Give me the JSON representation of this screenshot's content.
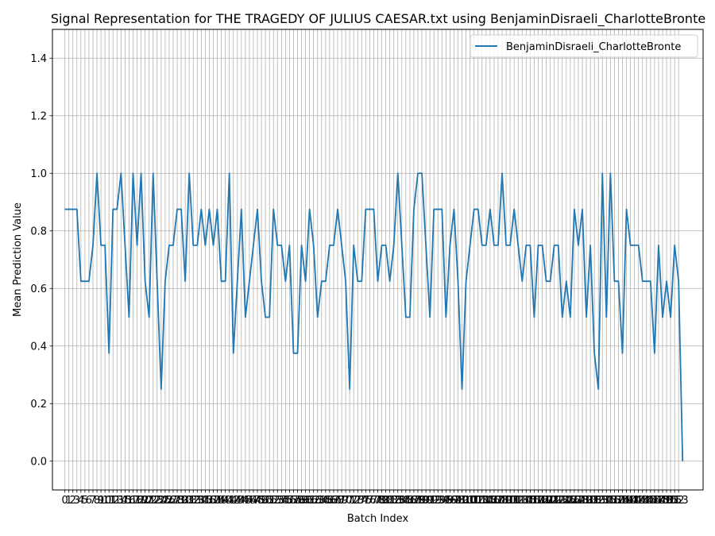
{
  "chart_data": {
    "type": "line",
    "title": "Signal Representation for THE TRAGEDY OF JULIUS CAESAR.txt using BenjaminDisraeli_CharlotteBronte",
    "xlabel": "Batch Index",
    "ylabel": "Mean Prediction Value",
    "xlim": [
      -3.1,
      159.1
    ],
    "ylim": [
      -0.1,
      1.5
    ],
    "yticks": [
      0.0,
      0.2,
      0.4,
      0.6,
      0.8,
      1.0,
      1.2,
      1.4
    ],
    "ytick_labels": [
      "0.0",
      "0.2",
      "0.4",
      "0.6",
      "0.8",
      "1.0",
      "1.2",
      "1.4"
    ],
    "xtick_start": 0,
    "xtick_end": 153,
    "grid": true,
    "legend_position": "top-right",
    "line_color": "#1f77b4",
    "series": [
      {
        "name": "BenjaminDisraeli_CharlotteBronte",
        "values": [
          0.875,
          0.875,
          0.875,
          0.875,
          0.625,
          0.625,
          0.625,
          0.75,
          1.0,
          0.75,
          0.75,
          0.375,
          0.875,
          0.875,
          1.0,
          0.75,
          0.5,
          1.0,
          0.75,
          1.0,
          0.625,
          0.5,
          1.0,
          0.625,
          0.25,
          0.625,
          0.75,
          0.75,
          0.875,
          0.875,
          0.625,
          1.0,
          0.75,
          0.75,
          0.875,
          0.75,
          0.875,
          0.75,
          0.875,
          0.625,
          0.625,
          1.0,
          0.375,
          0.625,
          0.875,
          0.5,
          0.625,
          0.75,
          0.875,
          0.625,
          0.5,
          0.5,
          0.875,
          0.75,
          0.75,
          0.625,
          0.75,
          0.375,
          0.375,
          0.75,
          0.625,
          0.875,
          0.75,
          0.5,
          0.625,
          0.625,
          0.75,
          0.75,
          0.875,
          0.75,
          0.625,
          0.25,
          0.75,
          0.625,
          0.625,
          0.875,
          0.875,
          0.875,
          0.625,
          0.75,
          0.75,
          0.625,
          0.75,
          1.0,
          0.75,
          0.5,
          0.5,
          0.875,
          1.0,
          1.0,
          0.75,
          0.5,
          0.875,
          0.875,
          0.875,
          0.5,
          0.75,
          0.875,
          0.625,
          0.25,
          0.625,
          0.75,
          0.875,
          0.875,
          0.75,
          0.75,
          0.875,
          0.75,
          0.75,
          1.0,
          0.75,
          0.75,
          0.875,
          0.75,
          0.625,
          0.75,
          0.75,
          0.5,
          0.75,
          0.75,
          0.625,
          0.625,
          0.75,
          0.75,
          0.5,
          0.625,
          0.5,
          0.875,
          0.75,
          0.875,
          0.5,
          0.75,
          0.375,
          0.25,
          1.0,
          0.5,
          1.0,
          0.625,
          0.625,
          0.375,
          0.875,
          0.75,
          0.75,
          0.75,
          0.625,
          0.625,
          0.625,
          0.375,
          0.75,
          0.5,
          0.625,
          0.5,
          0.75,
          0.625,
          0.0
        ]
      }
    ]
  }
}
